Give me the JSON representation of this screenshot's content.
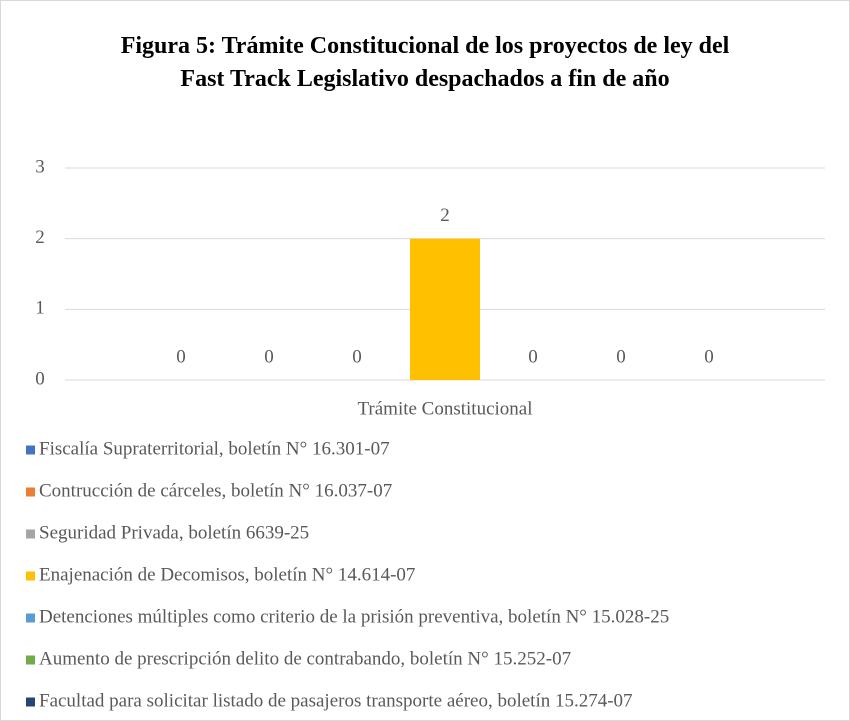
{
  "chart_data": {
    "type": "bar",
    "title": "Figura 5: Trámite Constitucional de los proyectos de ley  del Fast Track Legislativo despachados a fin de año",
    "categories": [
      "Trámite Constitucional"
    ],
    "series": [
      {
        "name": "Fiscalía Supraterritorial, boletín N° 16.301-07",
        "color": "#4472c4",
        "values": [
          0
        ]
      },
      {
        "name": "Contrucción de cárceles, boletín N° 16.037-07",
        "color": "#ed7d31",
        "values": [
          0
        ]
      },
      {
        "name": "Seguridad Privada, boletín 6639-25",
        "color": "#a5a5a5",
        "values": [
          0
        ]
      },
      {
        "name": "Enajenación de Decomisos, boletín N° 14.614-07",
        "color": "#ffc000",
        "values": [
          2
        ]
      },
      {
        "name": "Detenciones múltiples como criterio de la prisión preventiva, boletín N° 15.028-25",
        "color": "#5b9bd5",
        "values": [
          0
        ]
      },
      {
        "name": "Aumento de prescripción delito de contrabando, boletín N° 15.252-07",
        "color": "#70ad47",
        "values": [
          0
        ]
      },
      {
        "name": "Facultad para solicitar listado de pasajeros transporte aéreo, boletín 15.274-07",
        "color": "#264478",
        "values": [
          0
        ]
      }
    ],
    "ylim": [
      0,
      3
    ],
    "yticks": [
      0,
      1,
      2,
      3
    ],
    "grid": true,
    "legend": "bottom"
  }
}
